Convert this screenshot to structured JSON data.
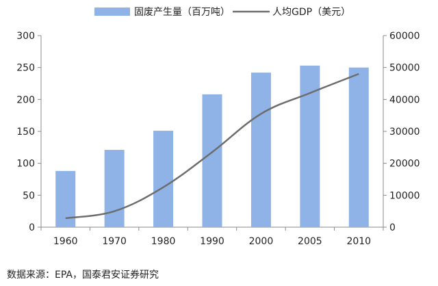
{
  "chart_data": {
    "type": "bar",
    "categories": [
      "1960",
      "1970",
      "1980",
      "1990",
      "2000",
      "2005",
      "2010"
    ],
    "series": [
      {
        "name": "固废产生量（百万吨）",
        "type": "bar",
        "axis": "left",
        "values": [
          88,
          121,
          151,
          208,
          242,
          253,
          250
        ],
        "color": "#8fb3e6"
      },
      {
        "name": "人均GDP（美元）",
        "type": "line",
        "axis": "right",
        "values": [
          2800,
          5000,
          12500,
          23500,
          35500,
          42000,
          48000
        ],
        "color": "#6d6d6d"
      }
    ],
    "y_left": {
      "lim": [
        0,
        300
      ],
      "ticks": [
        "0",
        "50",
        "100",
        "150",
        "200",
        "250",
        "300"
      ]
    },
    "y_right": {
      "lim": [
        0,
        60000
      ],
      "ticks": [
        "0",
        "10000",
        "20000",
        "30000",
        "40000",
        "50000",
        "60000"
      ]
    },
    "legend_position": "top",
    "grid": false
  },
  "source_text": "数据来源：EPA，国泰君安证券研究"
}
